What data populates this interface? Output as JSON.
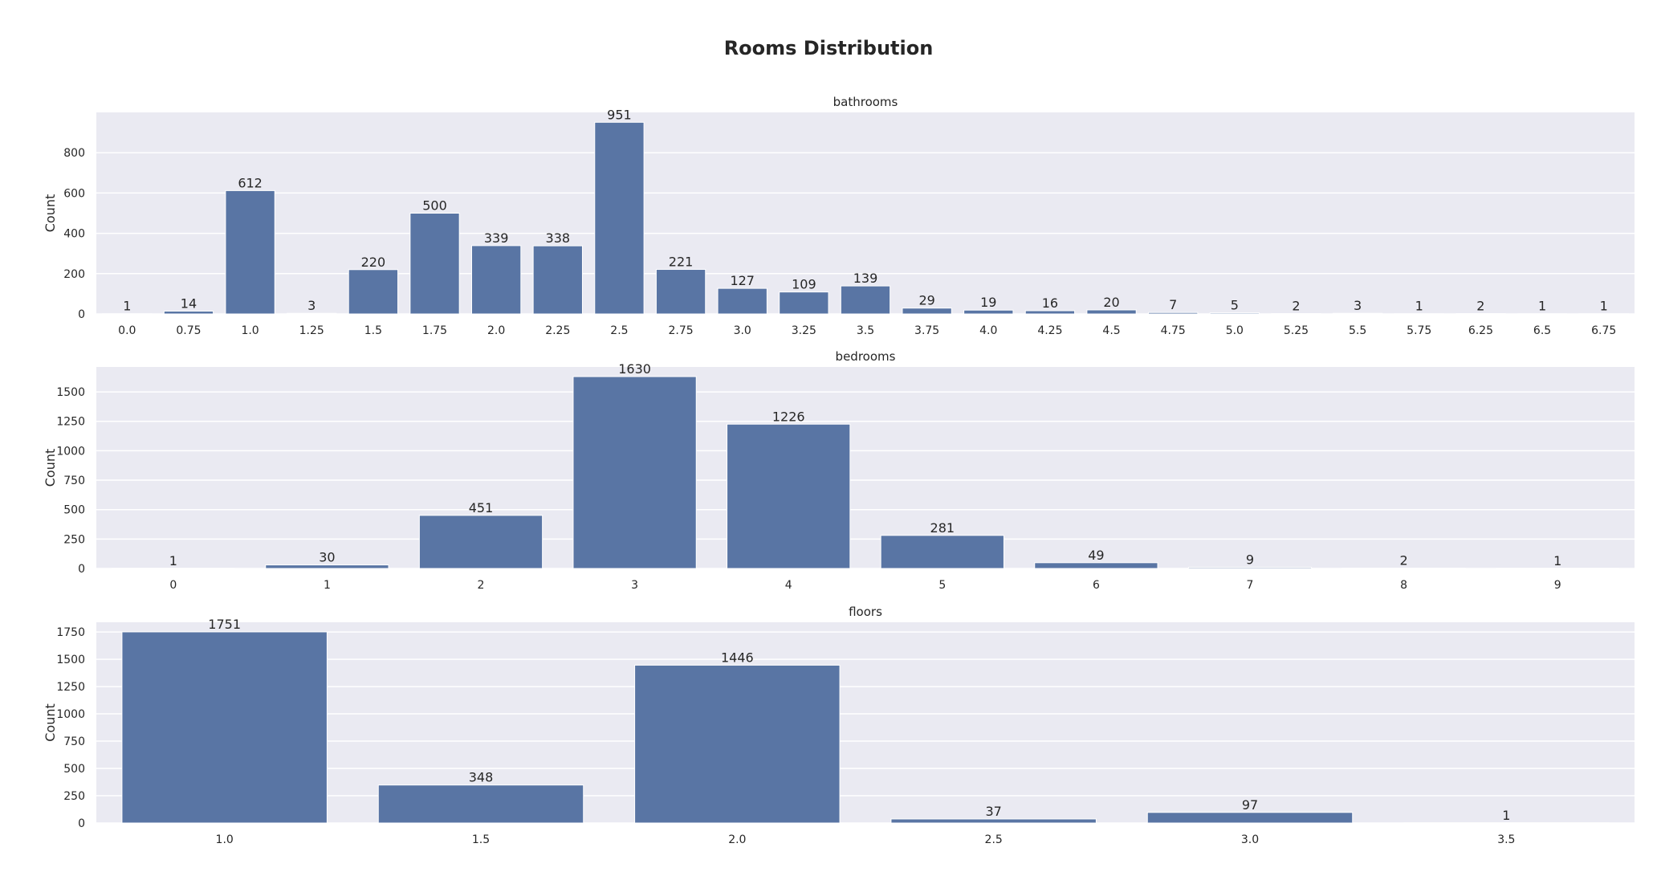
{
  "title": "Rooms Distribution",
  "colors": {
    "bar": "#5975a4",
    "plot_background": "#eaeaf2",
    "grid": "#ffffff"
  },
  "chart_data": [
    {
      "type": "bar",
      "title": "bathrooms",
      "xlabel": "",
      "ylabel": "Count",
      "grid": "y",
      "categories": [
        "0.0",
        "0.75",
        "1.0",
        "1.25",
        "1.5",
        "1.75",
        "2.0",
        "2.25",
        "2.5",
        "2.75",
        "3.0",
        "3.25",
        "3.5",
        "3.75",
        "4.0",
        "4.25",
        "4.5",
        "4.75",
        "5.0",
        "5.25",
        "5.5",
        "5.75",
        "6.25",
        "6.5",
        "6.75"
      ],
      "values": [
        1,
        14,
        612,
        3,
        220,
        500,
        339,
        338,
        951,
        221,
        127,
        109,
        139,
        29,
        19,
        16,
        20,
        7,
        5,
        2,
        3,
        1,
        2,
        1,
        1
      ],
      "ylim": [
        0,
        1000
      ],
      "yticks": [
        0,
        200,
        400,
        600,
        800
      ]
    },
    {
      "type": "bar",
      "title": "bedrooms",
      "xlabel": "",
      "ylabel": "Count",
      "grid": "y",
      "categories": [
        "0",
        "1",
        "2",
        "3",
        "4",
        "5",
        "6",
        "7",
        "8",
        "9"
      ],
      "values": [
        1,
        30,
        451,
        1630,
        1226,
        281,
        49,
        9,
        2,
        1
      ],
      "ylim": [
        0,
        1712
      ],
      "yticks": [
        0,
        250,
        500,
        750,
        1000,
        1250,
        1500
      ]
    },
    {
      "type": "bar",
      "title": "floors",
      "xlabel": "",
      "ylabel": "Count",
      "grid": "y",
      "categories": [
        "1.0",
        "1.5",
        "2.0",
        "2.5",
        "3.0",
        "3.5"
      ],
      "values": [
        1751,
        348,
        1446,
        37,
        97,
        1
      ],
      "ylim": [
        0,
        1839
      ],
      "yticks": [
        0,
        250,
        500,
        750,
        1000,
        1250,
        1500,
        1750
      ]
    }
  ]
}
